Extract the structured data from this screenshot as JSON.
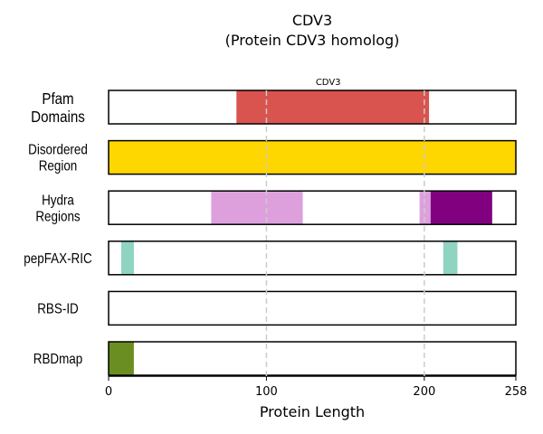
{
  "chart_data": {
    "type": "track",
    "title": "CDV3",
    "subtitle": "(Protein CDV3 homolog)",
    "xlabel": "Protein Length",
    "xlim": [
      0,
      258
    ],
    "xticks": [
      0,
      100,
      200,
      258
    ],
    "guides": [
      100,
      200
    ],
    "tracks": [
      {
        "name": "Pfam\nDomains",
        "segments": [
          {
            "start": 81,
            "end": 203,
            "color": "#d9534f",
            "label": "CDV3"
          }
        ]
      },
      {
        "name": "Disordered\nRegion",
        "segments": [
          {
            "start": 0,
            "end": 258,
            "color": "#ffd700"
          }
        ]
      },
      {
        "name": "Hydra\nRegions",
        "segments": [
          {
            "start": 65,
            "end": 123,
            "color": "#dda0dd"
          },
          {
            "start": 197,
            "end": 204,
            "color": "#dda0dd"
          },
          {
            "start": 204,
            "end": 243,
            "color": "#800080"
          }
        ]
      },
      {
        "name": "pepFAX-RIC",
        "segments": [
          {
            "start": 8,
            "end": 16,
            "color": "#8fd3c1"
          },
          {
            "start": 212,
            "end": 221,
            "color": "#8fd3c1"
          }
        ]
      },
      {
        "name": "RBS-ID",
        "segments": []
      },
      {
        "name": "RBDmap",
        "segments": [
          {
            "start": 0,
            "end": 16,
            "color": "#6b8e23"
          }
        ]
      }
    ]
  }
}
